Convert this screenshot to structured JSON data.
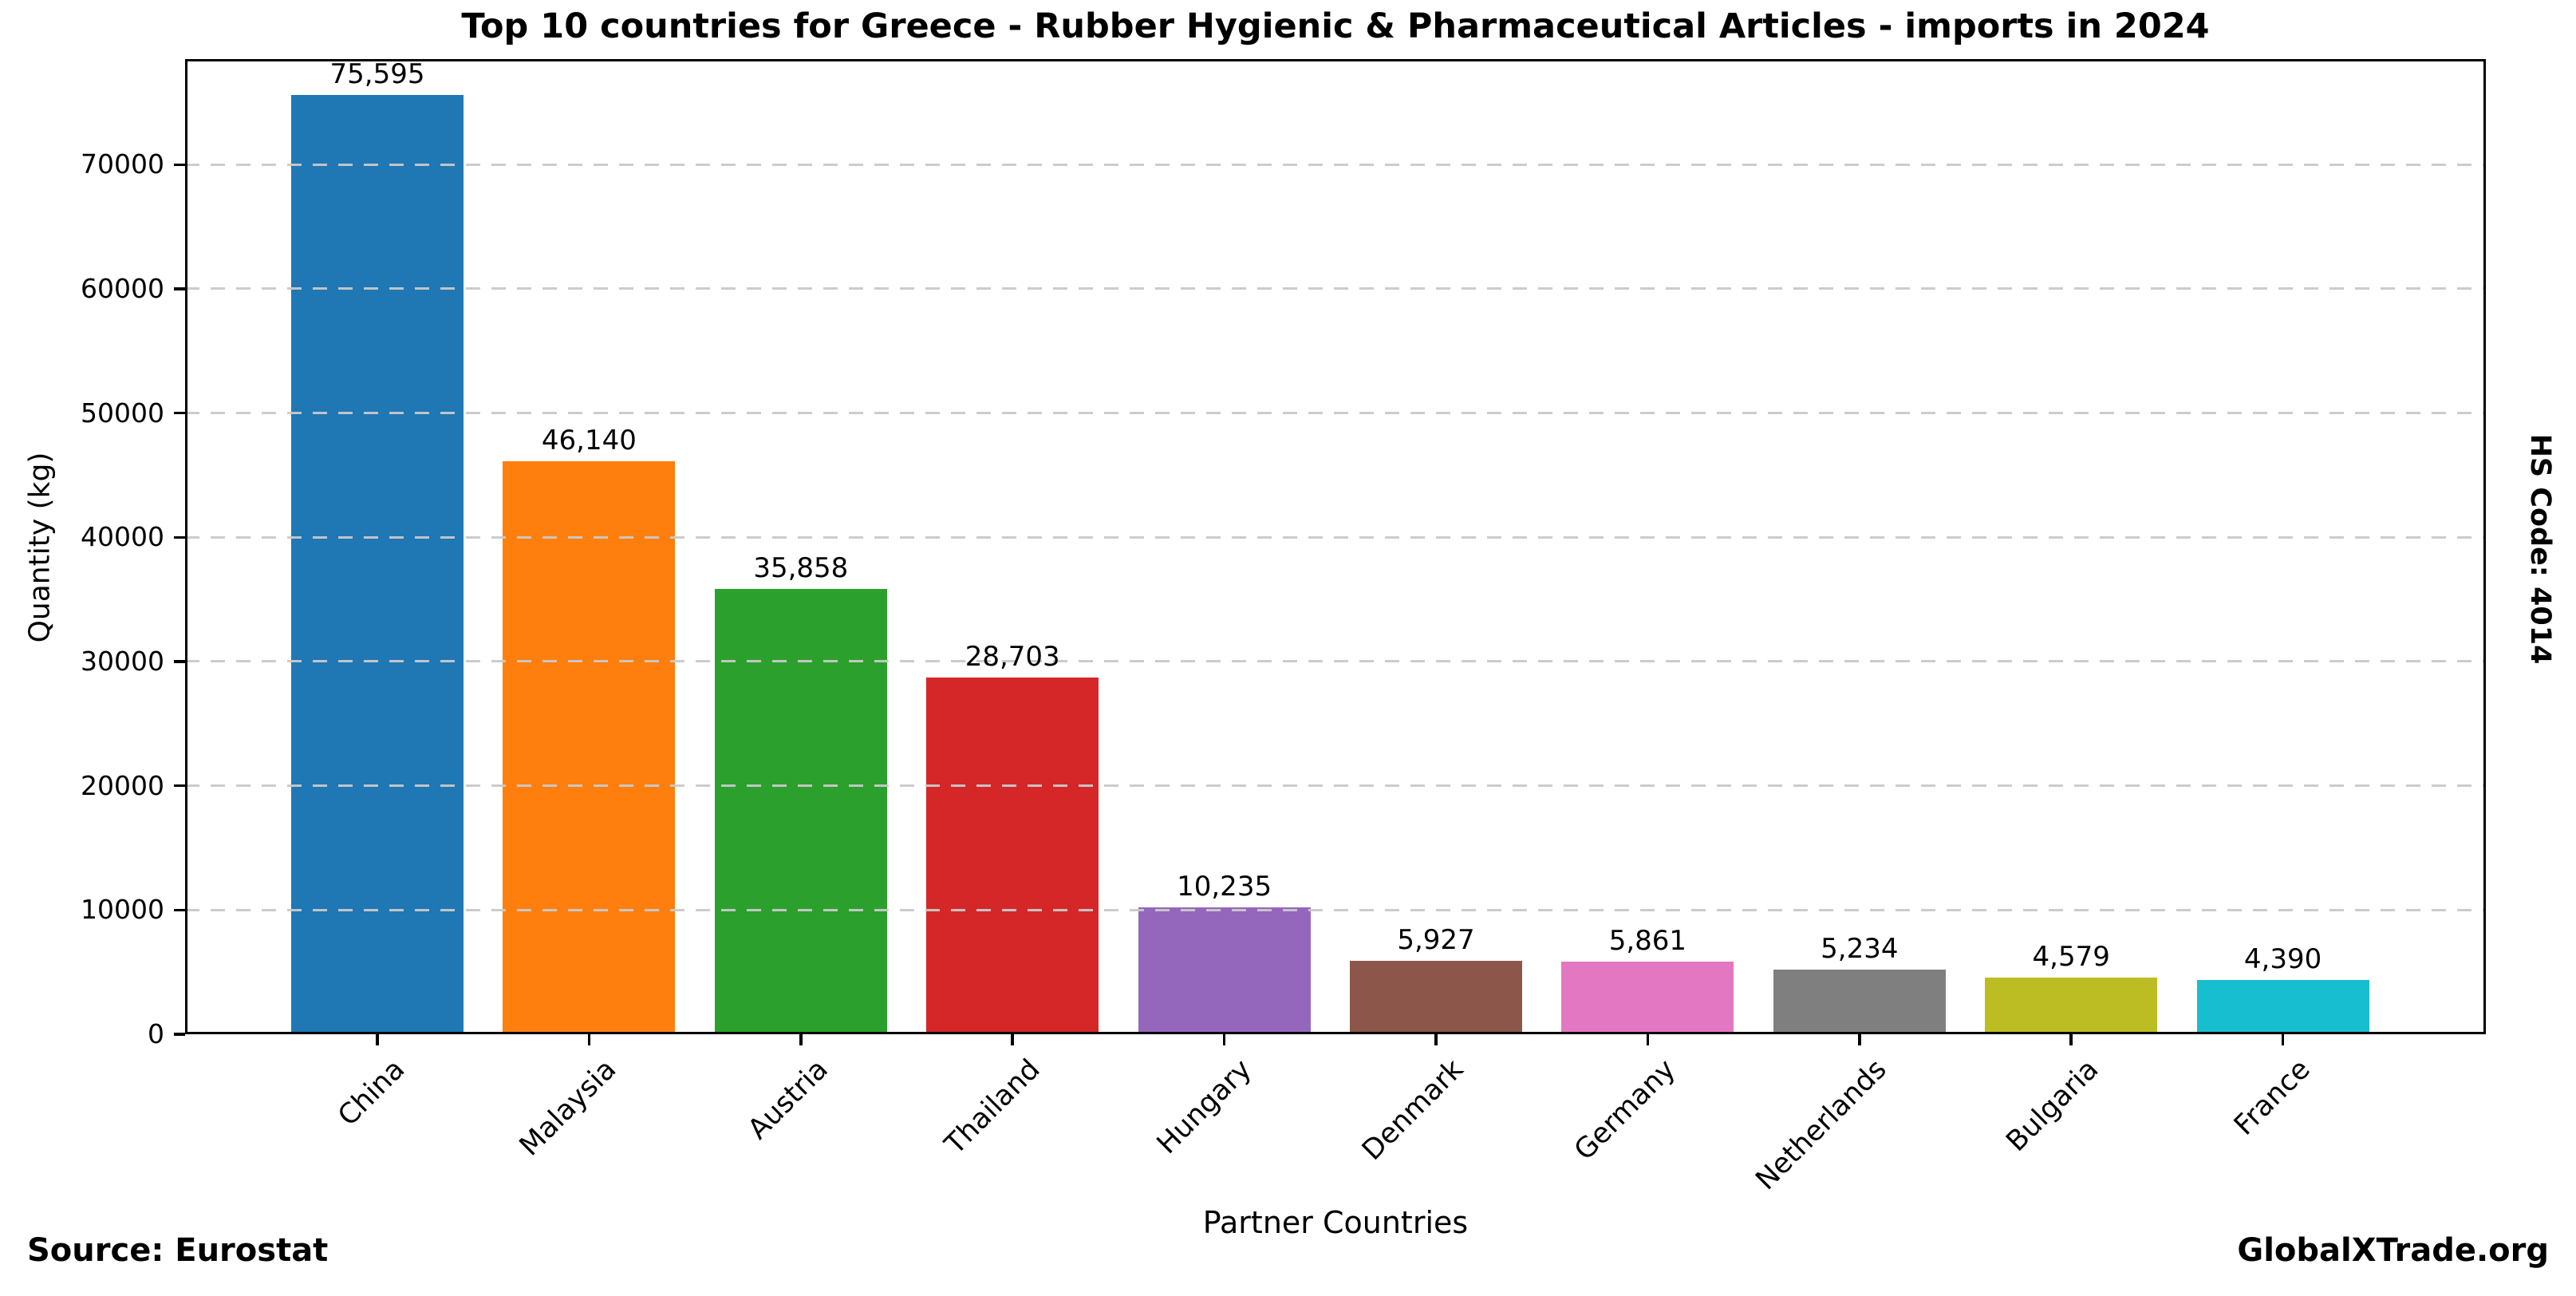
{
  "title": "Top 10 countries for Greece - Rubber Hygienic & Pharmaceutical Articles - imports in 2024",
  "side_label": "HS Code: 4014",
  "footer": {
    "source": "Source: Eurostat",
    "site": "GlobalXTrade.org"
  },
  "chart_data": {
    "type": "bar",
    "title": "Top 10 countries for Greece - Rubber Hygienic & Pharmaceutical Articles - imports in 2024",
    "xlabel": "Partner Countries",
    "ylabel": "Quantity (kg)",
    "categories": [
      "China",
      "Malaysia",
      "Austria",
      "Thailand",
      "Hungary",
      "Denmark",
      "Germany",
      "Netherlands",
      "Bulgaria",
      "France"
    ],
    "values": [
      75595,
      46140,
      35858,
      28703,
      10235,
      5927,
      5861,
      5234,
      4579,
      4390
    ],
    "value_labels": [
      "75,595",
      "46,140",
      "35,858",
      "28,703",
      "10,235",
      "5,927",
      "5,861",
      "5,234",
      "4,579",
      "4,390"
    ],
    "bar_colors": [
      "#1f77b4",
      "#ff7f0e",
      "#2ca02c",
      "#d62728",
      "#9467bd",
      "#8c564b",
      "#e377c2",
      "#7f7f7f",
      "#bcbd22",
      "#17becf"
    ],
    "yticks": [
      0,
      10000,
      20000,
      30000,
      40000,
      50000,
      60000,
      70000
    ],
    "ytick_labels": [
      "0",
      "10000",
      "20000",
      "30000",
      "40000",
      "50000",
      "60000",
      "70000"
    ],
    "ylim": [
      0,
      78500
    ],
    "grid": "horizontal-dashed",
    "grid_color": "#c9c9c9",
    "legend": "none",
    "side_label": "HS Code: 4014",
    "source": "Source: Eurostat",
    "watermark": "GlobalXTrade.org"
  }
}
